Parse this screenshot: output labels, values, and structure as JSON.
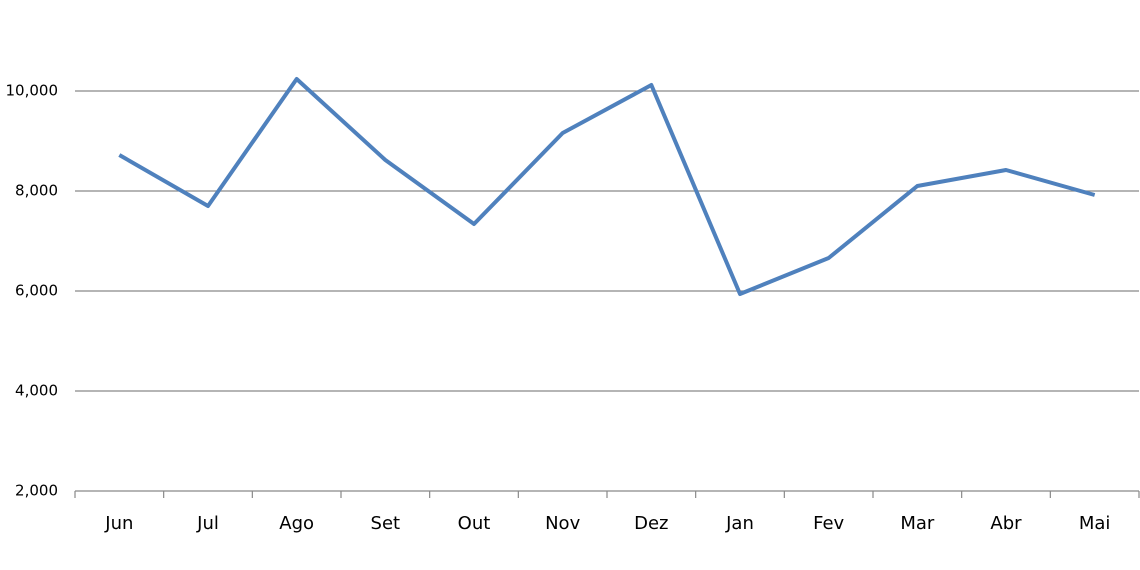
{
  "chart_data": {
    "type": "line",
    "categories": [
      "Jun",
      "Jul",
      "Ago",
      "Set",
      "Out",
      "Nov",
      "Dez",
      "Jan",
      "Fev",
      "Mar",
      "Abr",
      "Mai"
    ],
    "values": [
      8720,
      7700,
      10240,
      8620,
      7340,
      9160,
      10120,
      5940,
      6660,
      8100,
      8420,
      7920
    ],
    "color": "#4f81bd",
    "ylim": [
      2000,
      11000
    ],
    "yticks": [
      {
        "value": 2000,
        "label": "2,000"
      },
      {
        "value": 4000,
        "label": "4,000"
      },
      {
        "value": 6000,
        "label": "6,000"
      },
      {
        "value": 8000,
        "label": "8,000"
      },
      {
        "value": 10000,
        "label": "10,000"
      }
    ],
    "grid": true
  }
}
